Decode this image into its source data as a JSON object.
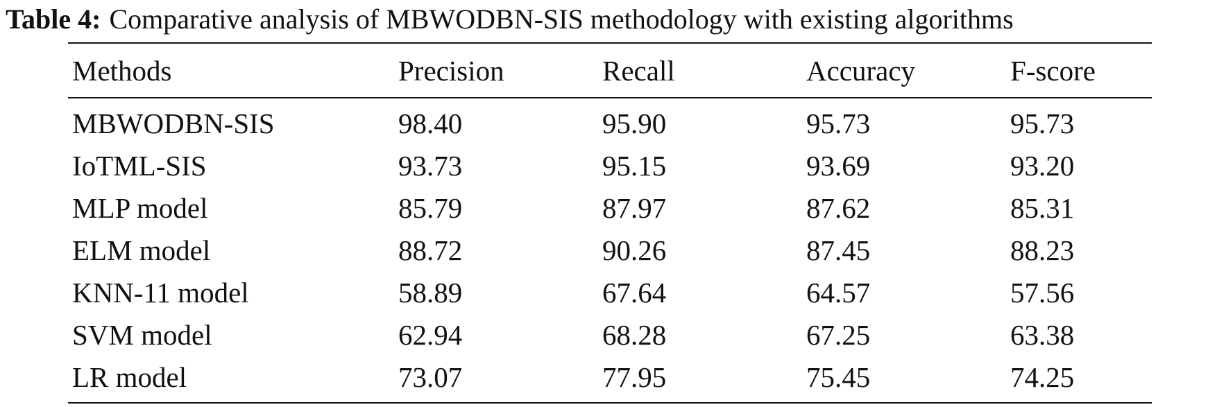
{
  "caption": {
    "label": "Table 4:",
    "text": "Comparative analysis of MBWODBN-SIS methodology with existing algorithms"
  },
  "table": {
    "headers": [
      "Methods",
      "Precision",
      "Recall",
      "Accuracy",
      "F-score"
    ],
    "rows": [
      [
        "MBWODBN-SIS",
        "98.40",
        "95.90",
        "95.73",
        "95.73"
      ],
      [
        "IoTML-SIS",
        "93.73",
        "95.15",
        "93.69",
        "93.20"
      ],
      [
        "MLP model",
        "85.79",
        "87.97",
        "87.62",
        "85.31"
      ],
      [
        "ELM model",
        "88.72",
        "90.26",
        "87.45",
        "88.23"
      ],
      [
        "KNN-11 model",
        "58.89",
        "67.64",
        "64.57",
        "57.56"
      ],
      [
        "SVM model",
        "62.94",
        "68.28",
        "67.25",
        "63.38"
      ],
      [
        "LR model",
        "73.07",
        "77.95",
        "75.45",
        "74.25"
      ]
    ]
  }
}
